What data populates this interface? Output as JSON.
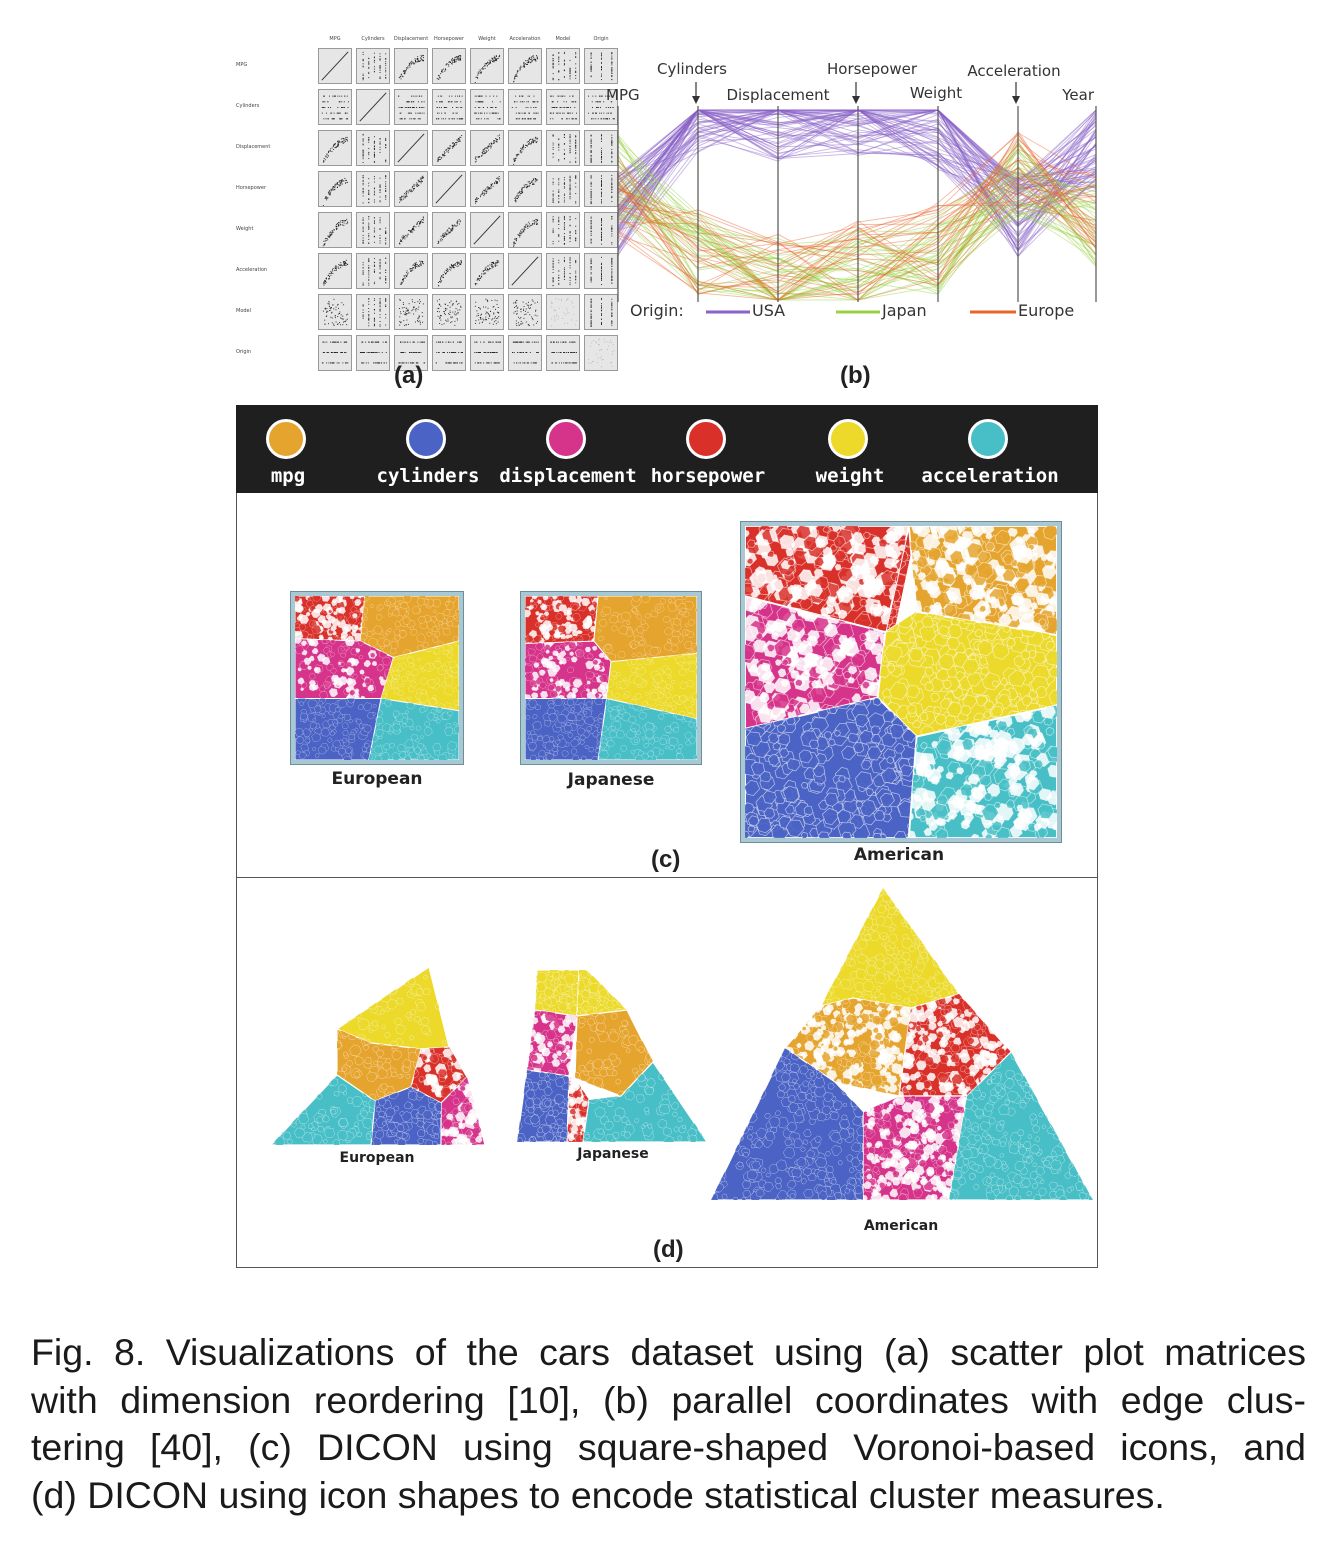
{
  "figure": {
    "panel_labels": {
      "a": "(a)",
      "b": "(b)",
      "c": "(c)",
      "d": "(d)"
    }
  },
  "panel_a": {
    "dimensions": [
      "MPG",
      "Cylinders",
      "Displacement",
      "Horsepower",
      "Weight",
      "Acceleration",
      "Model",
      "Origin"
    ]
  },
  "panel_b": {
    "axes": [
      "MPG",
      "Cylinders",
      "Displacement",
      "Horsepower",
      "Weight",
      "Acceleration",
      "Year"
    ],
    "legend_title": "Origin:",
    "legend": [
      {
        "name": "USA",
        "color": "#8a62c8"
      },
      {
        "name": "Japan",
        "color": "#9ad244"
      },
      {
        "name": "Europe",
        "color": "#e8642a"
      }
    ]
  },
  "dimension_legend": [
    {
      "label": "mpg",
      "color": "#e5a42e"
    },
    {
      "label": "cylinders",
      "color": "#4a63c4"
    },
    {
      "label": "displacement",
      "color": "#d6338a"
    },
    {
      "label": "horsepower",
      "color": "#d9302a"
    },
    {
      "label": "weight",
      "color": "#ecd92a"
    },
    {
      "label": "acceleration",
      "color": "#48bfc6"
    }
  ],
  "panel_c": {
    "icons": [
      {
        "label": "European"
      },
      {
        "label": "Japanese"
      },
      {
        "label": "American"
      }
    ]
  },
  "panel_d": {
    "icons": [
      {
        "label": "European"
      },
      {
        "label": "Japanese"
      },
      {
        "label": "American"
      }
    ]
  },
  "caption": {
    "lines": [
      "Fig. 8.  Visualizations of the cars dataset using (a) scatter plot matrices",
      "with dimension reordering [10], (b) parallel coordinates with edge clus-",
      "tering [40], (c) DICON using square-shaped Voronoi-based icons, and",
      "(d) DICON using icon shapes to encode statistical cluster measures."
    ]
  }
}
